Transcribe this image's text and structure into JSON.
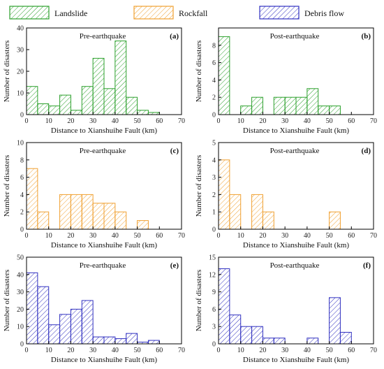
{
  "legend": [
    {
      "name": "Landslide",
      "color": "#2ca02c"
    },
    {
      "name": "Rockfall",
      "color": "#f0a030"
    },
    {
      "name": "Debris flow",
      "color": "#3030c0"
    }
  ],
  "chart_data": [
    {
      "type": "bar",
      "tag": "(a)",
      "title": "Pre-earthquake",
      "color": "#2ca02c",
      "xlabel": "Distance to Xianshuihe Fault (km)",
      "ylabel": "Number of disasters",
      "bin_width": 5,
      "xlim": [
        0,
        70
      ],
      "ylim": [
        0,
        40
      ],
      "xticks": [
        0,
        10,
        20,
        30,
        40,
        50,
        60,
        70
      ],
      "yticks": [
        0,
        10,
        20,
        30,
        40
      ],
      "x": [
        0,
        5,
        10,
        15,
        20,
        25,
        30,
        35,
        40,
        45,
        50,
        55,
        60,
        65
      ],
      "values": [
        13,
        5,
        4,
        9,
        2,
        13,
        26,
        12,
        34,
        8,
        2,
        1,
        0,
        0
      ]
    },
    {
      "type": "bar",
      "tag": "(b)",
      "title": "Post-earthquake",
      "color": "#2ca02c",
      "xlabel": "Distance to Xianshuihe Fault (km)",
      "ylabel": "Number of disasters",
      "bin_width": 5,
      "xlim": [
        0,
        70
      ],
      "ylim": [
        0,
        10
      ],
      "xticks": [
        0,
        10,
        20,
        30,
        40,
        50,
        60,
        70
      ],
      "yticks": [
        0,
        2,
        4,
        6,
        8
      ],
      "x": [
        0,
        5,
        10,
        15,
        20,
        25,
        30,
        35,
        40,
        45,
        50,
        55,
        60,
        65
      ],
      "values": [
        9,
        0,
        1,
        2,
        0,
        2,
        2,
        2,
        3,
        1,
        1,
        0,
        0,
        0
      ]
    },
    {
      "type": "bar",
      "tag": "(c)",
      "title": "Pre-earthquake",
      "color": "#f0a030",
      "xlabel": "Distance to Xianshuihe Fault (km)",
      "ylabel": "Number of disasters",
      "bin_width": 5,
      "xlim": [
        0,
        70
      ],
      "ylim": [
        0,
        10
      ],
      "xticks": [
        0,
        10,
        20,
        30,
        40,
        50,
        60,
        70
      ],
      "yticks": [
        0,
        2,
        4,
        6,
        8,
        10
      ],
      "x": [
        0,
        5,
        10,
        15,
        20,
        25,
        30,
        35,
        40,
        45,
        50,
        55,
        60,
        65
      ],
      "values": [
        7,
        2,
        0,
        4,
        4,
        4,
        3,
        3,
        2,
        0,
        1,
        0,
        0,
        0
      ]
    },
    {
      "type": "bar",
      "tag": "(d)",
      "title": "Post-earthquake",
      "color": "#f0a030",
      "xlabel": "Distance to Xianshuihe Fault (km)",
      "ylabel": "Number of disasters",
      "bin_width": 5,
      "xlim": [
        0,
        70
      ],
      "ylim": [
        0,
        5
      ],
      "xticks": [
        0,
        10,
        20,
        30,
        40,
        50,
        60,
        70
      ],
      "yticks": [
        0,
        1,
        2,
        3,
        4,
        5
      ],
      "x": [
        0,
        5,
        10,
        15,
        20,
        25,
        30,
        35,
        40,
        45,
        50,
        55,
        60,
        65
      ],
      "values": [
        4,
        2,
        0,
        2,
        1,
        0,
        0,
        0,
        0,
        0,
        1,
        0,
        0,
        0
      ]
    },
    {
      "type": "bar",
      "tag": "(e)",
      "title": "Pre-earthquake",
      "color": "#3030c0",
      "xlabel": "Distance to Xianshuihe Fault (km)",
      "ylabel": "Number of disasters",
      "bin_width": 5,
      "xlim": [
        0,
        70
      ],
      "ylim": [
        0,
        50
      ],
      "xticks": [
        0,
        10,
        20,
        30,
        40,
        50,
        60,
        70
      ],
      "yticks": [
        0,
        10,
        20,
        30,
        40,
        50
      ],
      "x": [
        0,
        5,
        10,
        15,
        20,
        25,
        30,
        35,
        40,
        45,
        50,
        55,
        60,
        65
      ],
      "values": [
        41,
        33,
        11,
        17,
        20,
        25,
        4,
        4,
        3,
        6,
        1,
        2,
        0,
        0
      ]
    },
    {
      "type": "bar",
      "tag": "(f)",
      "title": "Post-earthquake",
      "color": "#3030c0",
      "xlabel": "Distance to Xianshuihe Fault (km)",
      "ylabel": "Number of disasters",
      "bin_width": 5,
      "xlim": [
        0,
        70
      ],
      "ylim": [
        0,
        15
      ],
      "xticks": [
        0,
        10,
        20,
        30,
        40,
        50,
        60,
        70
      ],
      "yticks": [
        0,
        3,
        6,
        9,
        12,
        15
      ],
      "x": [
        0,
        5,
        10,
        15,
        20,
        25,
        30,
        35,
        40,
        45,
        50,
        55,
        60,
        65
      ],
      "values": [
        13,
        5,
        3,
        3,
        1,
        1,
        0,
        0,
        1,
        0,
        8,
        2,
        0,
        0
      ]
    }
  ]
}
